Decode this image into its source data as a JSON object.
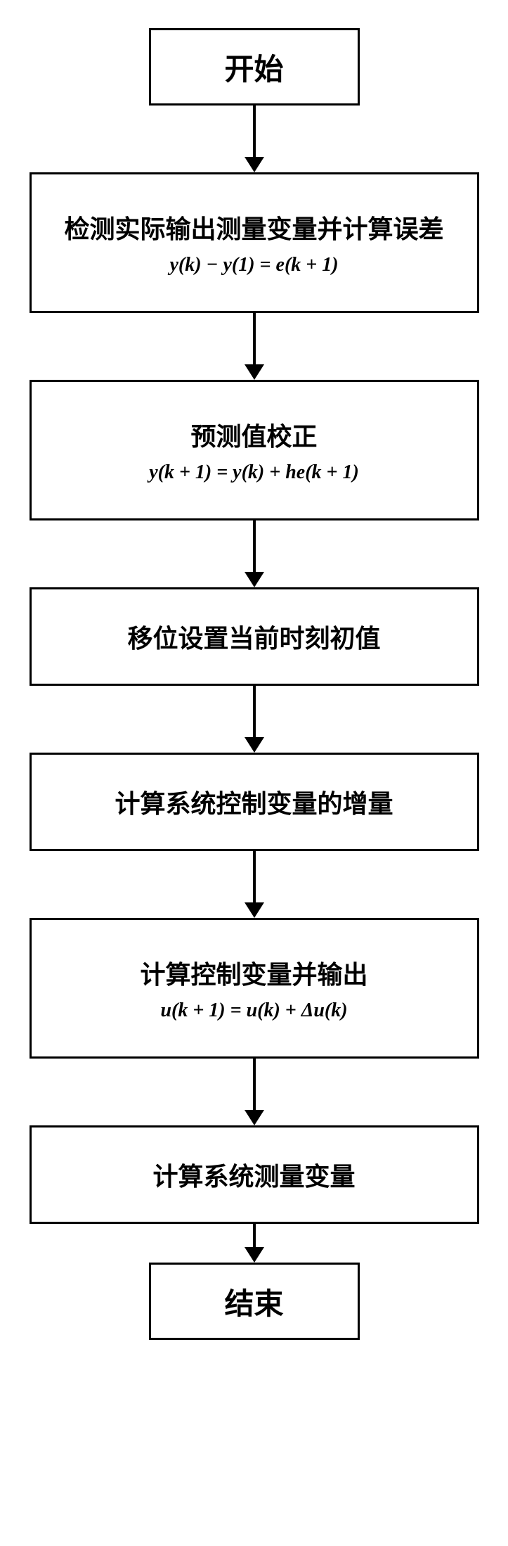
{
  "flowchart": {
    "background_color": "#ffffff",
    "border_color": "#000000",
    "border_width": 3,
    "arrow_color": "#000000",
    "text_color": "#000000",
    "font_family_main": "SimSun",
    "font_family_formula": "Times New Roman",
    "title_fontsize": 42,
    "main_fontsize": 36,
    "formula_fontsize": 28,
    "nodes": [
      {
        "id": "start",
        "type": "terminal",
        "text": "开始"
      },
      {
        "id": "step1",
        "type": "process-with-formula",
        "text": "检测实际输出测量变量并计算误差",
        "formula": "y(k) − y(1) = e(k + 1)"
      },
      {
        "id": "step2",
        "type": "process-with-formula",
        "text": "预测值校正",
        "formula": "y(k + 1) = y(k) + he(k + 1)"
      },
      {
        "id": "step3",
        "type": "process",
        "text": "移位设置当前时刻初值"
      },
      {
        "id": "step4",
        "type": "process",
        "text": "计算系统控制变量的增量"
      },
      {
        "id": "step5",
        "type": "process-with-formula",
        "text": "计算控制变量并输出",
        "formula": "u(k + 1) = u(k) + Δu(k)"
      },
      {
        "id": "step6",
        "type": "process",
        "text": "计算系统测量变量"
      },
      {
        "id": "end",
        "type": "terminal",
        "text": "结束"
      }
    ]
  }
}
